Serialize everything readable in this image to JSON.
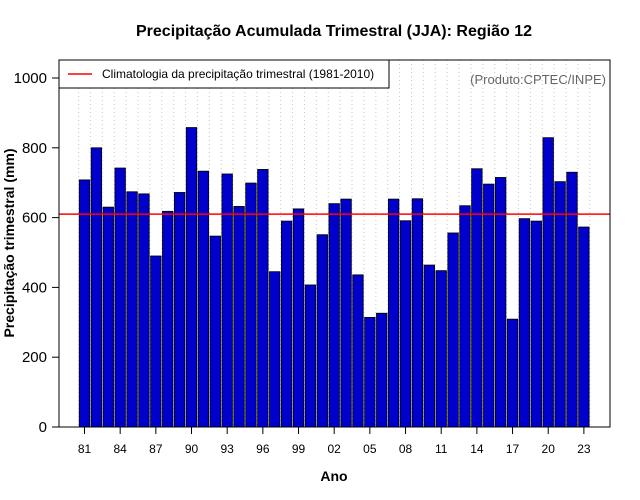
{
  "colors": {
    "bar_fill": "#0000cc",
    "bar_stroke": "#000000",
    "clim_line": "#ff0000",
    "grid": "#c8c8c8",
    "credit": "#666666"
  },
  "chart_data": {
    "type": "bar",
    "title": "Precipitação Acumulada Trimestral (JJA): Região 12",
    "xlabel": "Ano",
    "ylabel": "Precipitação trimestral (mm)",
    "credit": "(Produto:CPTEC/INPE)",
    "ylim": [
      0,
      1050
    ],
    "yticks": [
      0,
      200,
      400,
      600,
      800,
      1000
    ],
    "grid": "vertical dotted lines",
    "legend": {
      "position": "top-left",
      "label": "Climatologia da precipitação trimestral (1981-2010)"
    },
    "climatology": 610,
    "categories": [
      "81",
      "82",
      "83",
      "84",
      "85",
      "86",
      "87",
      "88",
      "89",
      "90",
      "91",
      "92",
      "93",
      "94",
      "95",
      "96",
      "97",
      "98",
      "99",
      "00",
      "01",
      "02",
      "03",
      "04",
      "05",
      "06",
      "07",
      "08",
      "09",
      "10",
      "11",
      "12",
      "13",
      "14",
      "15",
      "16",
      "17",
      "18",
      "19",
      "20",
      "21",
      "22",
      "23"
    ],
    "xtick_labels": [
      "81",
      "84",
      "87",
      "90",
      "93",
      "96",
      "99",
      "02",
      "05",
      "08",
      "11",
      "14",
      "17",
      "20",
      "23"
    ],
    "values": [
      708,
      800,
      630,
      742,
      674,
      668,
      490,
      618,
      672,
      858,
      733,
      547,
      725,
      632,
      699,
      738,
      445,
      590,
      625,
      407,
      551,
      640,
      653,
      436,
      314,
      326,
      653,
      591,
      654,
      464,
      448,
      556,
      634,
      740,
      696,
      715,
      309,
      597,
      590,
      829,
      703,
      730,
      573
    ]
  }
}
